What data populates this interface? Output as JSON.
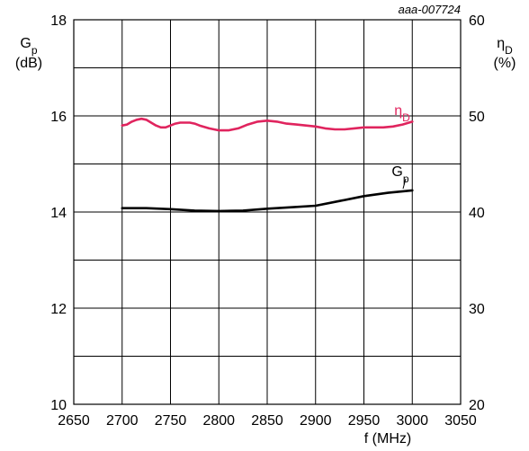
{
  "chart_data": {
    "type": "line",
    "reference_code": "aaa-007724",
    "x_axis": {
      "label": "f (MHz)",
      "range": [
        2650,
        3050
      ],
      "ticks": [
        2650,
        2700,
        2750,
        2800,
        2850,
        2900,
        2950,
        3000,
        3050
      ]
    },
    "y_axis_left": {
      "label_main": "G",
      "label_sub": "p",
      "label_unit": "(dB)",
      "range": [
        10,
        18
      ],
      "ticks": [
        10,
        12,
        14,
        16,
        18
      ]
    },
    "y_axis_right": {
      "label_main": "η",
      "label_sub": "D",
      "label_unit": "(%)",
      "range": [
        20,
        60
      ],
      "ticks": [
        20,
        30,
        40,
        50,
        60
      ]
    },
    "grid": true,
    "series": [
      {
        "name_main": "η",
        "name_sub": "D",
        "axis": "right",
        "color": "#e0245e",
        "x": [
          2700,
          2705,
          2710,
          2715,
          2720,
          2725,
          2730,
          2735,
          2740,
          2745,
          2750,
          2755,
          2760,
          2765,
          2770,
          2775,
          2780,
          2790,
          2800,
          2810,
          2820,
          2830,
          2840,
          2850,
          2860,
          2870,
          2880,
          2890,
          2900,
          2910,
          2920,
          2930,
          2940,
          2950,
          2960,
          2970,
          2980,
          2990,
          3000
        ],
        "y": [
          49.0,
          49.1,
          49.4,
          49.6,
          49.7,
          49.6,
          49.3,
          49.0,
          48.8,
          48.8,
          49.0,
          49.2,
          49.3,
          49.3,
          49.3,
          49.2,
          49.0,
          48.7,
          48.5,
          48.5,
          48.7,
          49.1,
          49.4,
          49.5,
          49.4,
          49.2,
          49.1,
          49.0,
          48.9,
          48.7,
          48.6,
          48.6,
          48.7,
          48.8,
          48.8,
          48.8,
          48.9,
          49.1,
          49.4
        ]
      },
      {
        "name_main": "G",
        "name_sub": "p",
        "axis": "left",
        "color": "#000000",
        "x": [
          2700,
          2725,
          2750,
          2775,
          2800,
          2825,
          2850,
          2875,
          2900,
          2925,
          2950,
          2975,
          3000
        ],
        "y": [
          14.08,
          14.08,
          14.06,
          14.03,
          14.02,
          14.03,
          14.07,
          14.1,
          14.13,
          14.23,
          14.33,
          14.4,
          14.45
        ]
      }
    ]
  }
}
